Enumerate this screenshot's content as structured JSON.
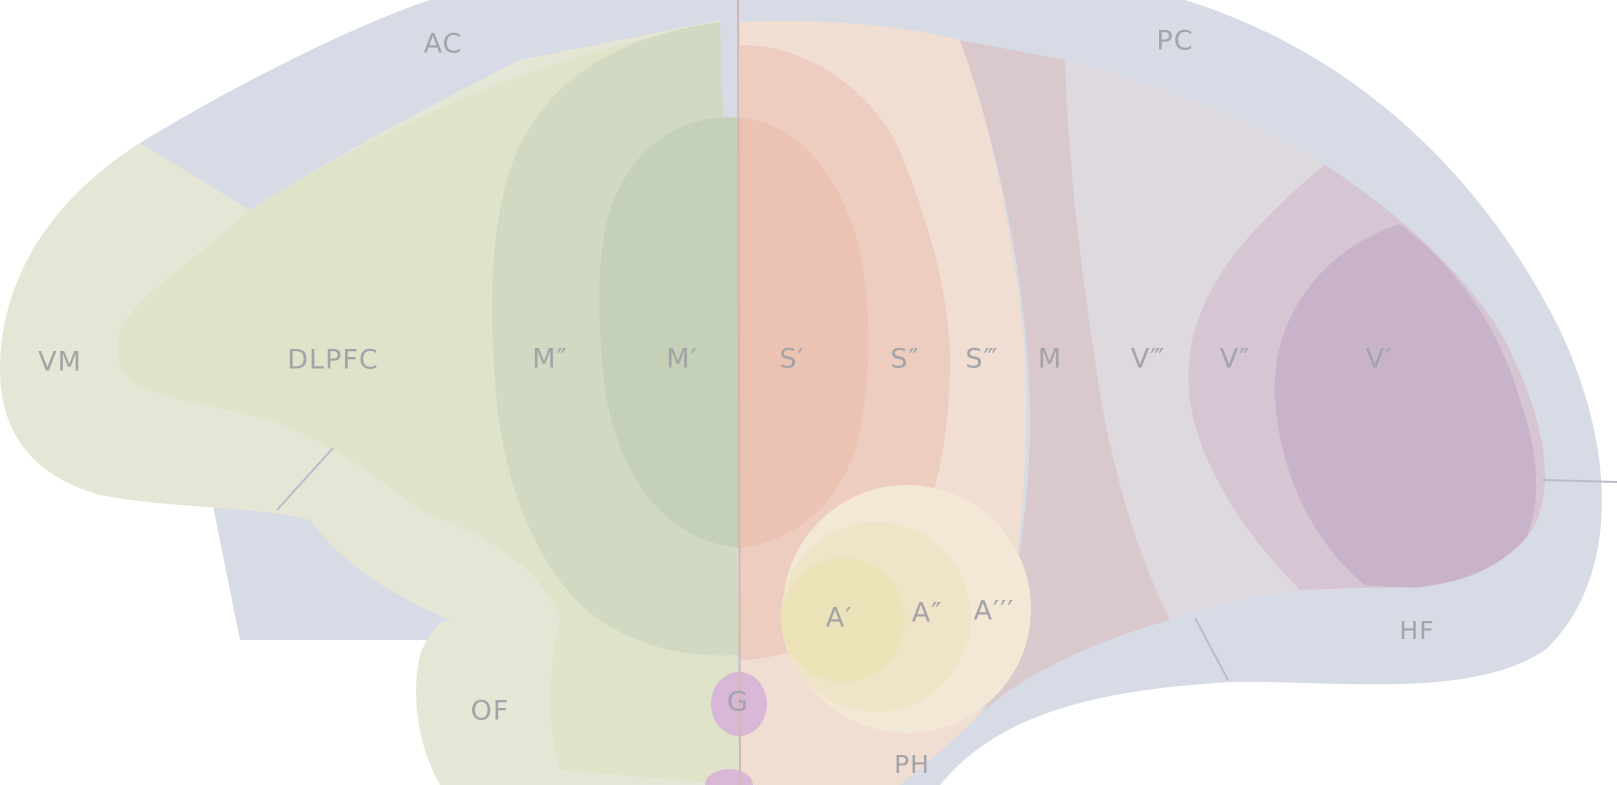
{
  "diagram": {
    "regions": {
      "ac": "AC",
      "pc": "PC",
      "vm": "VM",
      "dlpfc": "DLPFC",
      "m2": "M″",
      "m1": "M′",
      "s1": "S′",
      "s2": "S″",
      "s3": "S‴",
      "m": "M",
      "v3": "V‴",
      "v2": "V″",
      "v1": "V′",
      "a1": "A′",
      "a2": "A″",
      "a3": "A′′′",
      "hf": "HF",
      "of": "OF",
      "g": "G",
      "ph": "PH"
    },
    "colors": {
      "limbic_band": "#d7dbe6",
      "prefrontal_outer": "#e6e6d6",
      "prefrontal": "#dfe3c9",
      "motor_secondary": "#d1d9c3",
      "motor_primary": "#c4d1b8",
      "somatosensory_tertiary": "#f0ded2",
      "somatosensory_secondary": "#eccdc0",
      "somatosensory_primary": "#ecc2b3",
      "motion": "#d9c9cd",
      "visual_tertiary": "#ded9de",
      "visual_secondary": "#d6c6d4",
      "visual_primary": "#c8b3ca",
      "auditory_tertiary": "#f3e8d6",
      "auditory_secondary": "#efe4c7",
      "auditory_primary": "#ebe2b8",
      "gustatory": "#d8b8d6"
    }
  }
}
